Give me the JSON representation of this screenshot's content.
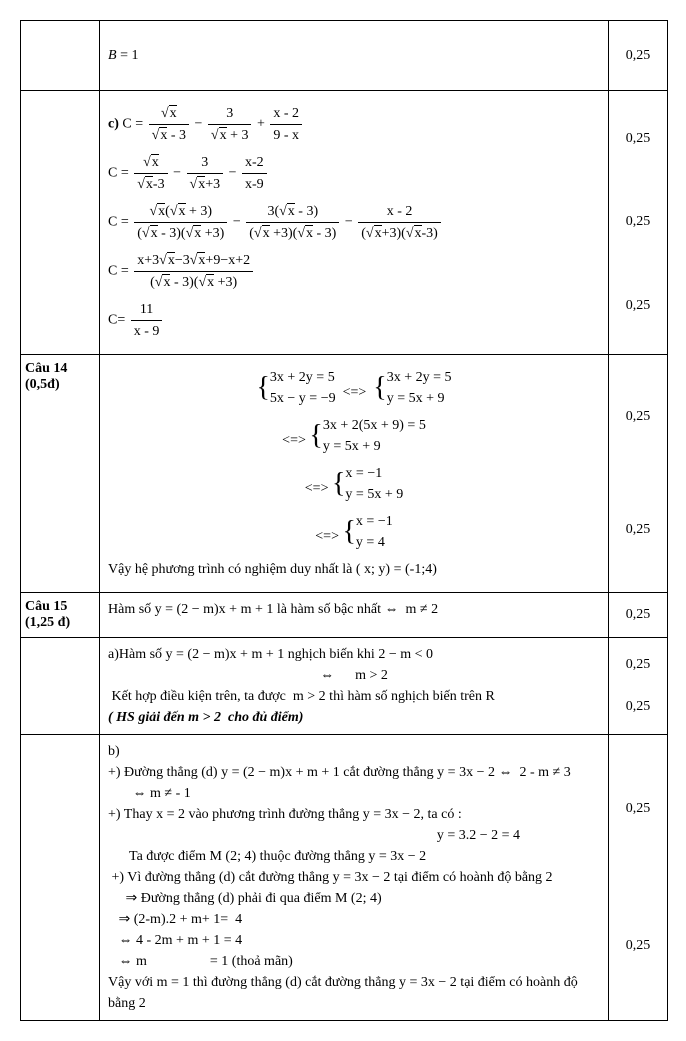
{
  "rows": [
    {
      "left": "",
      "score": [
        "0,25"
      ],
      "content_html": "<div class='eq-line' style='padding:12px 0'><i>B</i> = 1</div>"
    },
    {
      "left": "",
      "score": [
        "0,25",
        "0,25",
        "0,25"
      ],
      "content_html": "<div class='eq-line'><b>c)</b> C = <span class='frac'><span class='num'>√<span class='sqrt'>x</span></span><span class='den'>√<span class='sqrt'>x</span> - 3</span></span> − <span class='frac'><span class='num'>3</span><span class='den'>√<span class='sqrt'>x</span> + 3</span></span> + <span class='frac'><span class='num'>x - 2</span><span class='den'>9 - x</span></span></div><div class='eq-line'>C = <span class='frac'><span class='num'>√<span class='sqrt'>x</span></span><span class='den'>√<span class='sqrt'>x</span>-3</span></span> − <span class='frac'><span class='num'>3</span><span class='den'>√<span class='sqrt'>x</span>+3</span></span> − <span class='frac'><span class='num'>x-2</span><span class='den'>x-9</span></span></div><div class='eq-line'>C = <span class='frac'><span class='num'>√<span class='sqrt'>x</span>(√<span class='sqrt'>x</span> + 3)</span><span class='den'>(√<span class='sqrt'>x</span> - 3)(√<span class='sqrt'>x</span> +3)</span></span> − <span class='frac'><span class='num'>3(√<span class='sqrt'>x</span> - 3)</span><span class='den'>(√<span class='sqrt'>x</span> +3)(√<span class='sqrt'>x</span> - 3)</span></span> − <span class='frac'><span class='num'>x - 2</span><span class='den'>(√<span class='sqrt'>x</span>+3)(√<span class='sqrt'>x</span>-3)</span></span></div><div class='eq-line'>C = <span class='frac'><span class='num'>x+3√<span class='sqrt'>x</span>−3√<span class='sqrt'>x</span>+9−x+2</span><span class='den'>(√<span class='sqrt'>x</span> - 3)(√<span class='sqrt'>x</span> +3)</span></span></div><div class='eq-line'>C= <span class='frac'><span class='num'>11</span><span class='den'>x - 9</span></span></div>"
    },
    {
      "left": "Câu 14<br>(0,5đ)",
      "score": [
        "0,25",
        "0,25"
      ],
      "content_html": "<div class='center eq-line'><span class='system'><span class='brace'>{</span><span class='sys-body'>3x + 2y = 5<br>5x − y = −9</span></span> &nbsp;<=>&nbsp; <span class='system'><span class='brace'>{</span><span class='sys-body'>3x + 2y = 5<br>y = 5x + 9</span></span></div><div class='center eq-line'><=> <span class='system'><span class='brace'>{</span><span class='sys-body'>3x + 2(5x + 9) = 5<br>y = 5x + 9</span></span></div><div class='center eq-line'><=> <span class='system'><span class='brace'>{</span><span class='sys-body'>x = −1<br>y = 5x + 9</span></span></div><div class='center eq-line'><=> <span class='system'><span class='brace'>{</span><span class='sys-body'>x = −1<br>y = 4</span></span></div><div class='eq-line'>Vậy hệ phương trình có nghiệm duy nhất là ( x; y) = (-1;4)</div>"
    },
    {
      "left": "Câu 15<br>(1,25 đ)",
      "score": [
        "0,25"
      ],
      "content_html": "Hàm số y = (2 − m)x + m + 1 là hàm số bậc nhất ⇔ &nbsp;m ≠ 2"
    },
    {
      "left": "",
      "no_left": true,
      "score": [
        "0,25",
        "0,25"
      ],
      "content_html": "<div>a)Hàm số y = (2 − m)x + m + 1 nghịch biến khi 2 − m &lt; 0</div><div style='text-align:center'>⇔ &nbsp;&nbsp;&nbsp;&nbsp; m &gt; 2</div><div>&nbsp;Kết hợp điều kiện trên, ta được&nbsp; m &gt; 2 thì hàm số nghịch biến trên R</div><div><span class='bold-italic'>( HS giải đến m &gt; 2 &nbsp;cho đủ điểm)</span></div>"
    },
    {
      "left": "",
      "no_left": true,
      "score": [
        "0,25",
        "0,25"
      ],
      "content_html": "<div>b)</div><div>+) Đường thẳng (d) y = (2 − m)x + m + 1 cắt đường thẳng y = 3x − 2 ⇔ &nbsp;2 - m ≠ 3</div><div>&nbsp;&nbsp;&nbsp;&nbsp;&nbsp;&nbsp; ⇔ m ≠ - 1</div><div>+) Thay x = 2 vào phương trình đường thẳng y = 3x − 2, ta có :</div><div style='text-align:right;padding-right:80px'>y = 3.2 − 2 = 4</div><div>&nbsp;&nbsp;&nbsp;&nbsp;&nbsp;&nbsp;Ta được điểm M (2; 4) thuộc đường thẳng y = 3x − 2</div><div>&nbsp;+) Vì đường thẳng (d) cắt đường thẳng y = 3x − 2 tại điểm có hoành độ bằng 2</div><div>&nbsp;&nbsp;&nbsp;&nbsp;&nbsp;⇒ Đường thẳng (d) phải đi qua điểm M (2; 4)</div><div>&nbsp;&nbsp;&nbsp;⇒ (2-m).2 + m+ 1= &nbsp;4</div><div>&nbsp;&nbsp;&nbsp;⇔ 4 - 2m + m + 1 = 4</div><div>&nbsp;&nbsp;&nbsp;⇔ m &nbsp;&nbsp;&nbsp;&nbsp;&nbsp;&nbsp;&nbsp;&nbsp;&nbsp;&nbsp;&nbsp;&nbsp;&nbsp;&nbsp;&nbsp;&nbsp;&nbsp;= 1 (thoả mãn)</div><div>Vậy với m = 1 thì đường thẳng (d) cắt đường thẳng y = 3x − 2 tại điểm có hoành độ bằng 2</div>"
    }
  ]
}
